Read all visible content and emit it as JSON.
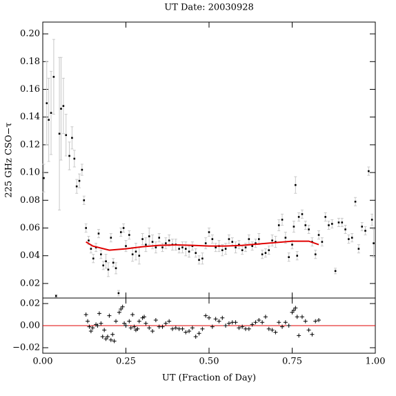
{
  "chart_data": [
    {
      "type": "scatter",
      "title": "UT Date: 20030928",
      "y_label": "225 GHz CSO−τ",
      "xlim": [
        0,
        1
      ],
      "xticks": [
        0,
        0.25,
        0.5,
        0.75,
        1
      ],
      "ylim": [
        0.0095,
        0.2085
      ],
      "yticks": [
        {
          "value": 0.02,
          "label": "0.02"
        },
        {
          "value": 0.04,
          "label": "0.04"
        },
        {
          "value": 0.06,
          "label": "0.06"
        },
        {
          "value": 0.08,
          "label": "0.08"
        },
        {
          "value": 0.1,
          "label": "0.10"
        },
        {
          "value": 0.12,
          "label": "0.12"
        },
        {
          "value": 0.14,
          "label": "0.14"
        },
        {
          "value": 0.16,
          "label": "0.16"
        },
        {
          "value": 0.18,
          "label": "0.18"
        },
        {
          "value": 0.2,
          "label": "0.20"
        }
      ],
      "series": [
        {
          "color": "#000000",
          "error_color": "#c8c8c8",
          "x": [
            0.003,
            0.012,
            0.018,
            0.025,
            0.033,
            0.04,
            0.05,
            0.055,
            0.062,
            0.07,
            0.08,
            0.088,
            0.095,
            0.102,
            0.11,
            0.118,
            0.124,
            0.13,
            0.138,
            0.145,
            0.152,
            0.16,
            0.168,
            0.175,
            0.182,
            0.19,
            0.197,
            0.205,
            0.212,
            0.22,
            0.228,
            0.235,
            0.243,
            0.25,
            0.26,
            0.27,
            0.28,
            0.29,
            0.3,
            0.31,
            0.32,
            0.33,
            0.34,
            0.35,
            0.36,
            0.37,
            0.38,
            0.39,
            0.4,
            0.41,
            0.42,
            0.43,
            0.44,
            0.45,
            0.46,
            0.47,
            0.48,
            0.49,
            0.5,
            0.51,
            0.52,
            0.53,
            0.54,
            0.55,
            0.56,
            0.57,
            0.58,
            0.59,
            0.6,
            0.61,
            0.62,
            0.63,
            0.64,
            0.65,
            0.66,
            0.67,
            0.68,
            0.69,
            0.7,
            0.71,
            0.72,
            0.73,
            0.74,
            0.75,
            0.755,
            0.76,
            0.765,
            0.77,
            0.78,
            0.79,
            0.8,
            0.81,
            0.82,
            0.83,
            0.84,
            0.85,
            0.86,
            0.87,
            0.88,
            0.89,
            0.9,
            0.91,
            0.92,
            0.93,
            0.94,
            0.95,
            0.96,
            0.97,
            0.98,
            0.99,
            0.995
          ],
          "values": [
            0.096,
            0.15,
            0.138,
            0.143,
            0.169,
            0.011,
            0.128,
            0.146,
            0.148,
            0.127,
            0.112,
            0.125,
            0.11,
            0.09,
            0.094,
            0.102,
            0.08,
            0.06,
            0.051,
            0.045,
            0.038,
            0.046,
            0.056,
            0.041,
            0.033,
            0.036,
            0.03,
            0.053,
            0.035,
            0.031,
            0.013,
            0.057,
            0.06,
            0.047,
            0.055,
            0.041,
            0.043,
            0.04,
            0.052,
            0.048,
            0.054,
            0.05,
            0.046,
            0.053,
            0.046,
            0.049,
            0.051,
            0.048,
            0.048,
            0.045,
            0.046,
            0.045,
            0.043,
            0.047,
            0.042,
            0.037,
            0.038,
            0.049,
            0.057,
            0.052,
            0.046,
            0.047,
            0.044,
            0.045,
            0.052,
            0.05,
            0.046,
            0.048,
            0.044,
            0.046,
            0.052,
            0.047,
            0.049,
            0.052,
            0.041,
            0.042,
            0.044,
            0.051,
            0.05,
            0.062,
            0.066,
            0.053,
            0.039,
            0.048,
            0.061,
            0.091,
            0.04,
            0.068,
            0.07,
            0.062,
            0.059,
            0.05,
            0.041,
            0.055,
            0.05,
            0.068,
            0.062,
            0.063,
            0.029,
            0.064,
            0.064,
            0.059,
            0.052,
            0.053,
            0.079,
            0.045,
            0.061,
            0.058,
            0.101,
            0.066,
            0.049
          ],
          "errors": [
            0.01,
            0.03,
            0.03,
            0.03,
            0.027,
            0.001,
            0.055,
            0.037,
            0.02,
            0.015,
            0.01,
            0.008,
            0.006,
            0.005,
            0.005,
            0.004,
            0.003,
            0.003,
            0.003,
            0.003,
            0.003,
            0.003,
            0.003,
            0.003,
            0.003,
            0.005,
            0.005,
            0.003,
            0.003,
            0.004,
            0.002,
            0.003,
            0.003,
            0.004,
            0.003,
            0.005,
            0.006,
            0.006,
            0.004,
            0.005,
            0.006,
            0.005,
            0.004,
            0.003,
            0.003,
            0.004,
            0.004,
            0.004,
            0.004,
            0.003,
            0.004,
            0.005,
            0.004,
            0.003,
            0.003,
            0.003,
            0.004,
            0.004,
            0.003,
            0.003,
            0.003,
            0.004,
            0.004,
            0.004,
            0.003,
            0.003,
            0.004,
            0.003,
            0.003,
            0.003,
            0.003,
            0.003,
            0.003,
            0.004,
            0.003,
            0.003,
            0.003,
            0.004,
            0.004,
            0.004,
            0.004,
            0.004,
            0.003,
            0.003,
            0.004,
            0.006,
            0.003,
            0.003,
            0.003,
            0.003,
            0.003,
            0.003,
            0.003,
            0.003,
            0.003,
            0.003,
            0.003,
            0.003,
            0.002,
            0.003,
            0.003,
            0.003,
            0.003,
            0.003,
            0.003,
            0.003,
            0.003,
            0.003,
            0.003,
            0.004,
            0.01
          ]
        },
        {
          "type": "line",
          "color": "#e00000",
          "x": [
            0.13,
            0.15,
            0.2,
            0.25,
            0.3,
            0.35,
            0.4,
            0.45,
            0.5,
            0.55,
            0.6,
            0.65,
            0.7,
            0.75,
            0.8,
            0.83
          ],
          "values": [
            0.05,
            0.047,
            0.044,
            0.045,
            0.0465,
            0.0475,
            0.0478,
            0.0475,
            0.047,
            0.047,
            0.0475,
            0.0485,
            0.0495,
            0.0505,
            0.0505,
            0.048
          ]
        }
      ]
    },
    {
      "type": "scatter",
      "x_label": "UT (Fraction of Day)",
      "xlim": [
        0,
        1
      ],
      "xticks": [
        {
          "value": 0,
          "label": "0.00"
        },
        {
          "value": 0.25,
          "label": "0.25"
        },
        {
          "value": 0.5,
          "label": "0.50"
        },
        {
          "value": 0.75,
          "label": "0.75"
        },
        {
          "value": 1,
          "label": "1.00"
        }
      ],
      "ylim": [
        -0.025,
        0.025
      ],
      "yticks": [
        {
          "value": -0.02,
          "label": "−0.02"
        },
        {
          "value": 0,
          "label": "0.00"
        },
        {
          "value": 0.02,
          "label": "0.02"
        }
      ],
      "reference_line": {
        "value": 0,
        "color": "#e00000"
      },
      "series": [
        {
          "color": "#000000",
          "x": [
            0.13,
            0.135,
            0.14,
            0.145,
            0.15,
            0.16,
            0.165,
            0.17,
            0.175,
            0.18,
            0.185,
            0.19,
            0.195,
            0.2,
            0.205,
            0.21,
            0.215,
            0.22,
            0.23,
            0.235,
            0.24,
            0.245,
            0.25,
            0.26,
            0.265,
            0.27,
            0.275,
            0.28,
            0.285,
            0.29,
            0.3,
            0.305,
            0.31,
            0.32,
            0.33,
            0.34,
            0.35,
            0.36,
            0.37,
            0.38,
            0.39,
            0.4,
            0.41,
            0.42,
            0.43,
            0.44,
            0.45,
            0.46,
            0.47,
            0.48,
            0.49,
            0.5,
            0.51,
            0.52,
            0.53,
            0.54,
            0.55,
            0.56,
            0.57,
            0.58,
            0.59,
            0.6,
            0.61,
            0.62,
            0.63,
            0.64,
            0.65,
            0.66,
            0.67,
            0.68,
            0.69,
            0.7,
            0.71,
            0.72,
            0.73,
            0.74,
            0.75,
            0.755,
            0.76,
            0.765,
            0.77,
            0.78,
            0.79,
            0.8,
            0.81,
            0.82,
            0.83
          ],
          "values": [
            0.01,
            0.004,
            -0.001,
            -0.005,
            -0.002,
            0.001,
            0,
            0.011,
            0.002,
            -0.01,
            -0.004,
            -0.012,
            -0.01,
            0.009,
            -0.013,
            -0.008,
            -0.014,
            0.004,
            0.012,
            0.015,
            0.017,
            0.002,
            0,
            0.004,
            -0.002,
            0.01,
            -0.001,
            -0.004,
            -0.003,
            0.004,
            0.007,
            0.008,
            0.002,
            -0.002,
            -0.005,
            0.005,
            -0.001,
            -0.001,
            0.002,
            0.004,
            -0.003,
            -0.002,
            -0.003,
            -0.003,
            -0.006,
            -0.005,
            -0.002,
            -0.01,
            -0.007,
            -0.003,
            0.009,
            0.007,
            -0.001,
            0.006,
            0.004,
            0.007,
            0,
            0.002,
            0.003,
            0.003,
            -0.002,
            -0.001,
            -0.003,
            -0.003,
            0.001,
            0.003,
            0.005,
            0.003,
            0.008,
            -0.003,
            -0.004,
            -0.006,
            0.003,
            -0.001,
            0.003,
            0,
            0.012,
            0.014,
            0.016,
            0.008,
            -0.009,
            0.008,
            0.004,
            -0.004,
            -0.008,
            0.004,
            0.005
          ]
        }
      ]
    }
  ]
}
